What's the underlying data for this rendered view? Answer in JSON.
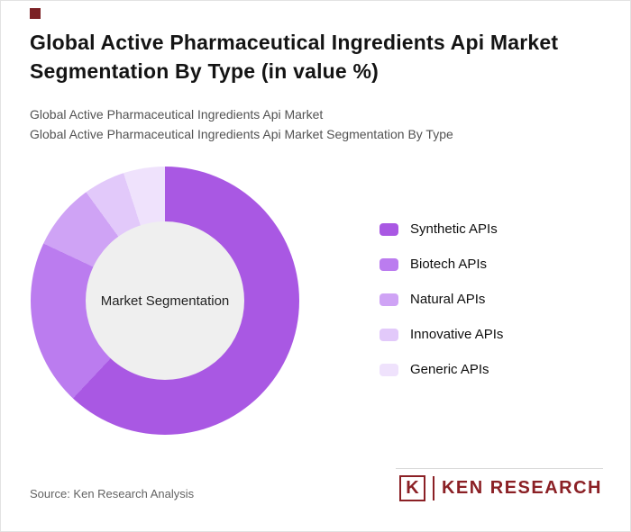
{
  "header": {
    "title": "Global Active Pharmaceutical Ingredients Api Market Segmentation By Type (in value %)",
    "subtitle_line1": "Global Active Pharmaceutical Ingredients Api Market",
    "subtitle_line2": "Global Active Pharmaceutical Ingredients Api Market Segmentation By Type"
  },
  "chart_data": {
    "type": "pie",
    "donut": true,
    "title": "Global Active Pharmaceutical Ingredients Api Market Segmentation By Type (in value %)",
    "center_label": "Market Segmentation",
    "categories": [
      "Synthetic APIs",
      "Biotech APIs",
      "Natural APIs",
      "Innovative APIs",
      "Generic APIs"
    ],
    "values": [
      62,
      20,
      8,
      5,
      5
    ],
    "colors": [
      "#a958e3",
      "#bb7cef",
      "#cfa3f5",
      "#e2c9fa",
      "#efe2fc"
    ],
    "units": "value %",
    "legend_position": "right",
    "hole_color": "#efefef"
  },
  "footer": {
    "source": "Source: Ken Research Analysis",
    "brand": "KEN RESEARCH",
    "brand_letter": "K",
    "brand_color": "#8b2025"
  },
  "accent_color": "#7b2125"
}
